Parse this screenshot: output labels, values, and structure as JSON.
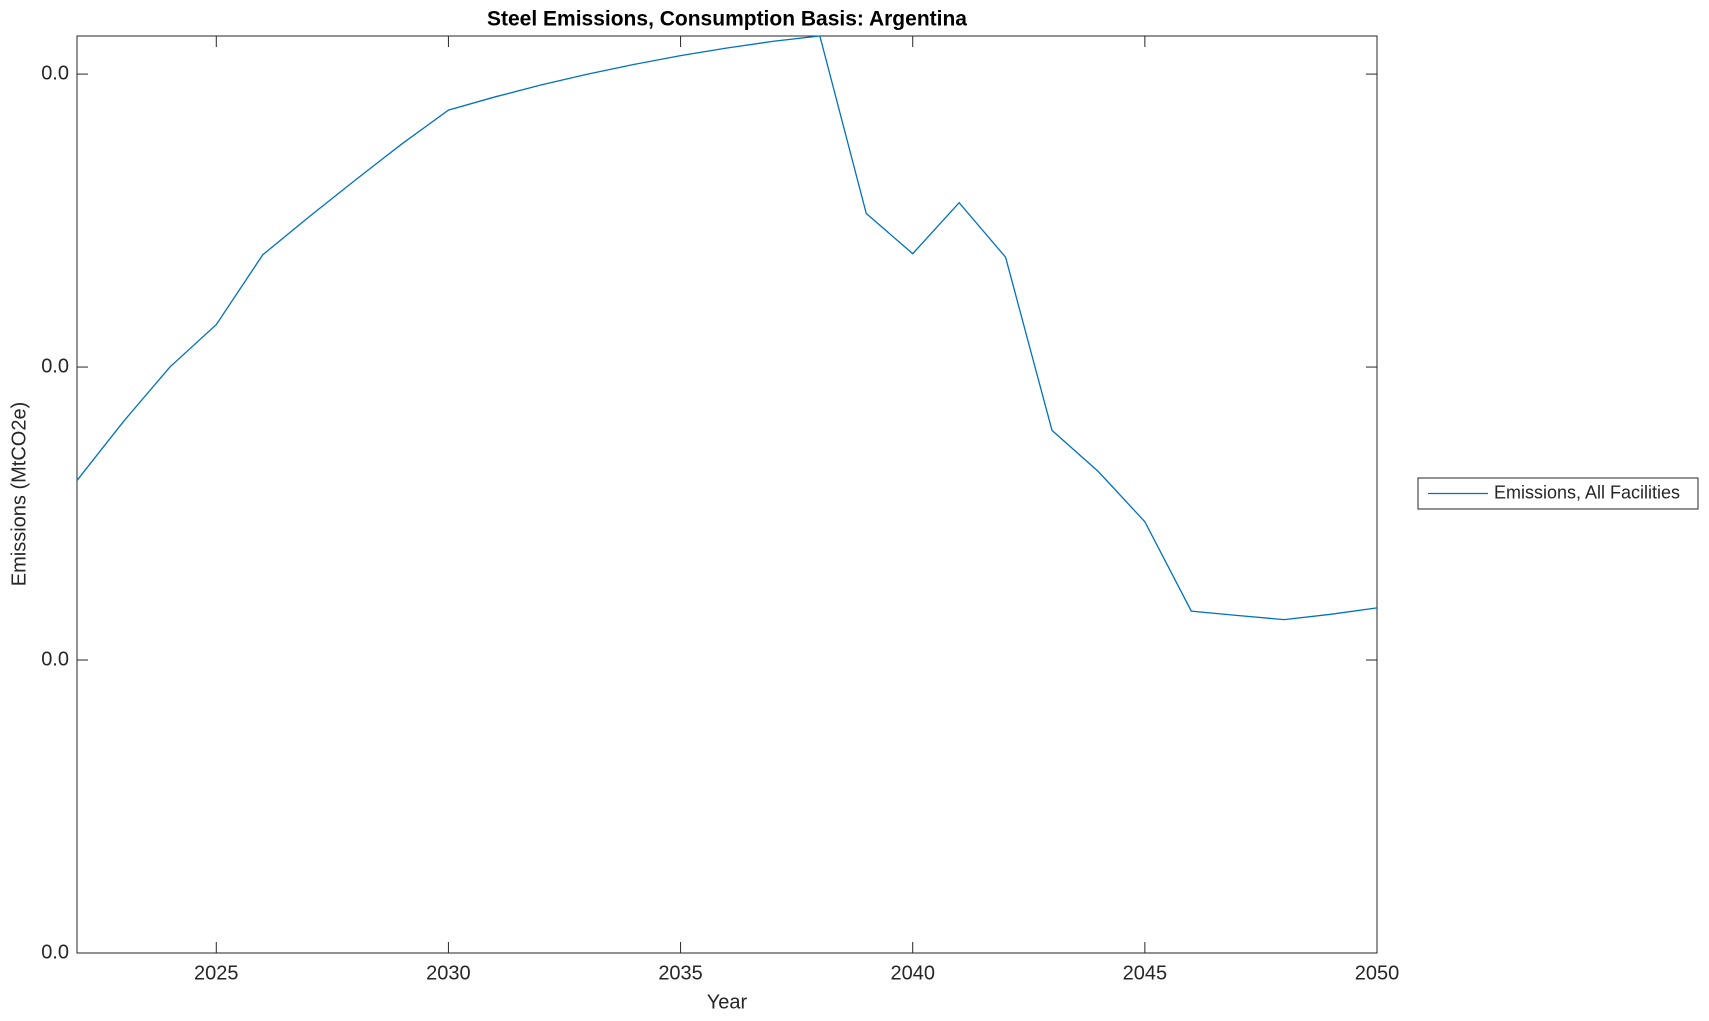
{
  "chart_data": {
    "type": "line",
    "title": "Steel Emissions, Consumption Basis: Argentina",
    "xlabel": "Year",
    "ylabel": "Emissions (MtCO2e)",
    "x": [
      2022,
      2023,
      2024,
      2025,
      2026,
      2027,
      2028,
      2029,
      2030,
      2031,
      2032,
      2033,
      2034,
      2035,
      2036,
      2037,
      2038,
      2039,
      2040,
      2041,
      2042,
      2043,
      2044,
      2045,
      2046,
      2047,
      2048,
      2049,
      2050
    ],
    "series": [
      {
        "name": "Emissions, All Facilities",
        "color": "#0072bd",
        "values": [
          0.01613,
          0.01814,
          0.02,
          0.02145,
          0.02383,
          0.02513,
          0.02639,
          0.02762,
          0.02877,
          0.02922,
          0.02963,
          0.03,
          0.03033,
          0.03063,
          0.03089,
          0.03112,
          0.0313,
          0.02524,
          0.02387,
          0.02561,
          0.02375,
          0.01784,
          0.01643,
          0.01472,
          0.01167,
          0.01152,
          0.01138,
          0.01156,
          0.01178
        ]
      }
    ],
    "xlim": [
      2022,
      2050
    ],
    "xticks": [
      2025,
      2030,
      2035,
      2040,
      2045,
      2050
    ],
    "ylim": [
      0,
      0.0313
    ],
    "yticks": [
      {
        "value": 0,
        "label": "0.0"
      },
      {
        "value": 0.01,
        "label": "0.0"
      },
      {
        "value": 0.02,
        "label": "0.0"
      },
      {
        "value": 0.03,
        "label": "0.0"
      }
    ],
    "grid": false,
    "legend": "eastoutside"
  }
}
